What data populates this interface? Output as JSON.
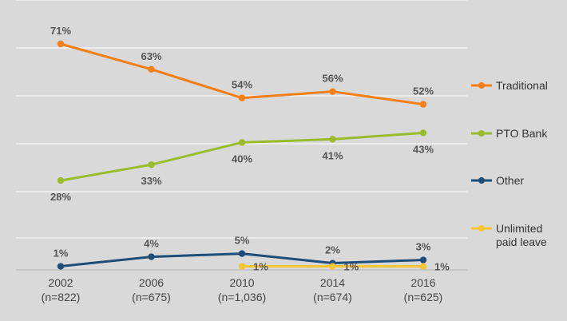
{
  "chart_data": {
    "type": "line",
    "title": "",
    "xlabel": "",
    "ylabel": "",
    "ylim": [
      0,
      75
    ],
    "grid": true,
    "legend_position": "right",
    "categories": [
      {
        "year": "2002",
        "n": "(n=822)"
      },
      {
        "year": "2006",
        "n": "(n=675)"
      },
      {
        "year": "2010",
        "n": "(n=1,036)"
      },
      {
        "year": "2014",
        "n": "(n=674)"
      },
      {
        "year": "2016",
        "n": "(n=625)"
      }
    ],
    "series": [
      {
        "name": "Traditional",
        "color": "#f57f17",
        "values": [
          71,
          63,
          54,
          56,
          52
        ],
        "labels": [
          "71%",
          "63%",
          "54%",
          "56%",
          "52%"
        ],
        "label_position": "above"
      },
      {
        "name": "PTO Bank",
        "color": "#9bbb2d",
        "values": [
          28,
          33,
          40,
          41,
          43
        ],
        "labels": [
          "28%",
          "33%",
          "40%",
          "41%",
          "43%"
        ],
        "label_position": "below"
      },
      {
        "name": "Other",
        "color": "#1e4d78",
        "values": [
          1,
          4,
          5,
          2,
          3
        ],
        "labels": [
          "1%",
          "4%",
          "5%",
          "2%",
          "3%"
        ],
        "label_position": "above"
      },
      {
        "name": "Unlimited paid leave",
        "legend_lines": [
          "Unlimited",
          "paid leave"
        ],
        "color": "#f7c531",
        "values": [
          null,
          null,
          1,
          1,
          1
        ],
        "labels": [
          "",
          "",
          "1%",
          "1%",
          "1%"
        ],
        "label_position": "right"
      }
    ]
  }
}
